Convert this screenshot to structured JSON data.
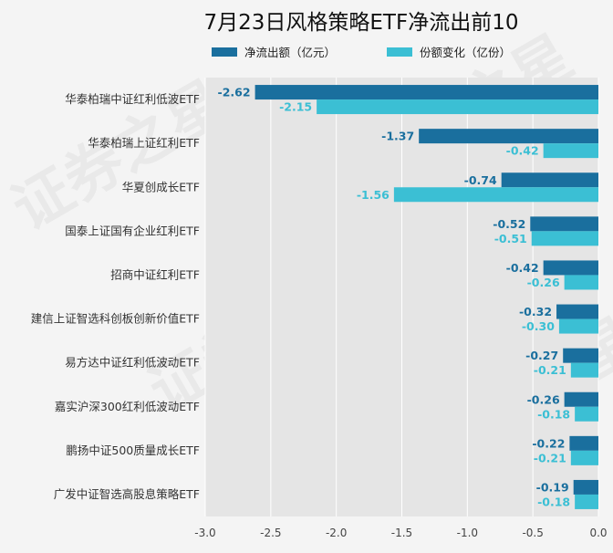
{
  "chart_data": {
    "type": "bar",
    "orientation": "horizontal",
    "title": "7月23日风格策略ETF净流出前10",
    "categories": [
      "华泰柏瑞中证红利低波ETF",
      "华泰柏瑞上证红利ETF",
      "华夏创成长ETF",
      "国泰上证国有企业红利ETF",
      "招商中证红利ETF",
      "建信上证智选科创板创新价值ETF",
      "易方达中证红利低波动ETF",
      "嘉实沪深300红利低波动ETF",
      "鹏扬中证500质量成长ETF",
      "广发中证智选高股息策略ETF"
    ],
    "series": [
      {
        "name": "净流出额（亿元）",
        "color": "#1a6f9e",
        "values": [
          -2.62,
          -1.37,
          -0.74,
          -0.52,
          -0.42,
          -0.32,
          -0.27,
          -0.26,
          -0.22,
          -0.19
        ],
        "labels": [
          "-2.62",
          "-1.37",
          "-0.74",
          "-0.52",
          "-0.42",
          "-0.32",
          "-0.27",
          "-0.26",
          "-0.22",
          "-0.19"
        ]
      },
      {
        "name": "份额变化（亿份）",
        "color": "#3bbfd4",
        "values": [
          -2.15,
          -0.42,
          -1.56,
          -0.51,
          -0.26,
          -0.3,
          -0.21,
          -0.18,
          -0.21,
          -0.18
        ],
        "labels": [
          "-2.15",
          "-0.42",
          "-1.56",
          "-0.51",
          "-0.26",
          "-0.30",
          "-0.21",
          "-0.18",
          "-0.21",
          "-0.18"
        ]
      }
    ],
    "xlim": [
      -3.0,
      0.0
    ],
    "xticks": [
      -3.0,
      -2.5,
      -2.0,
      -1.5,
      -1.0,
      -0.5,
      0.0
    ],
    "xtick_labels": [
      "-3.0",
      "-2.5",
      "-2.0",
      "-1.5",
      "-1.0",
      "-0.5",
      "0.0"
    ],
    "grid": true,
    "legend_position": "top-center",
    "watermark": "证券之星"
  }
}
